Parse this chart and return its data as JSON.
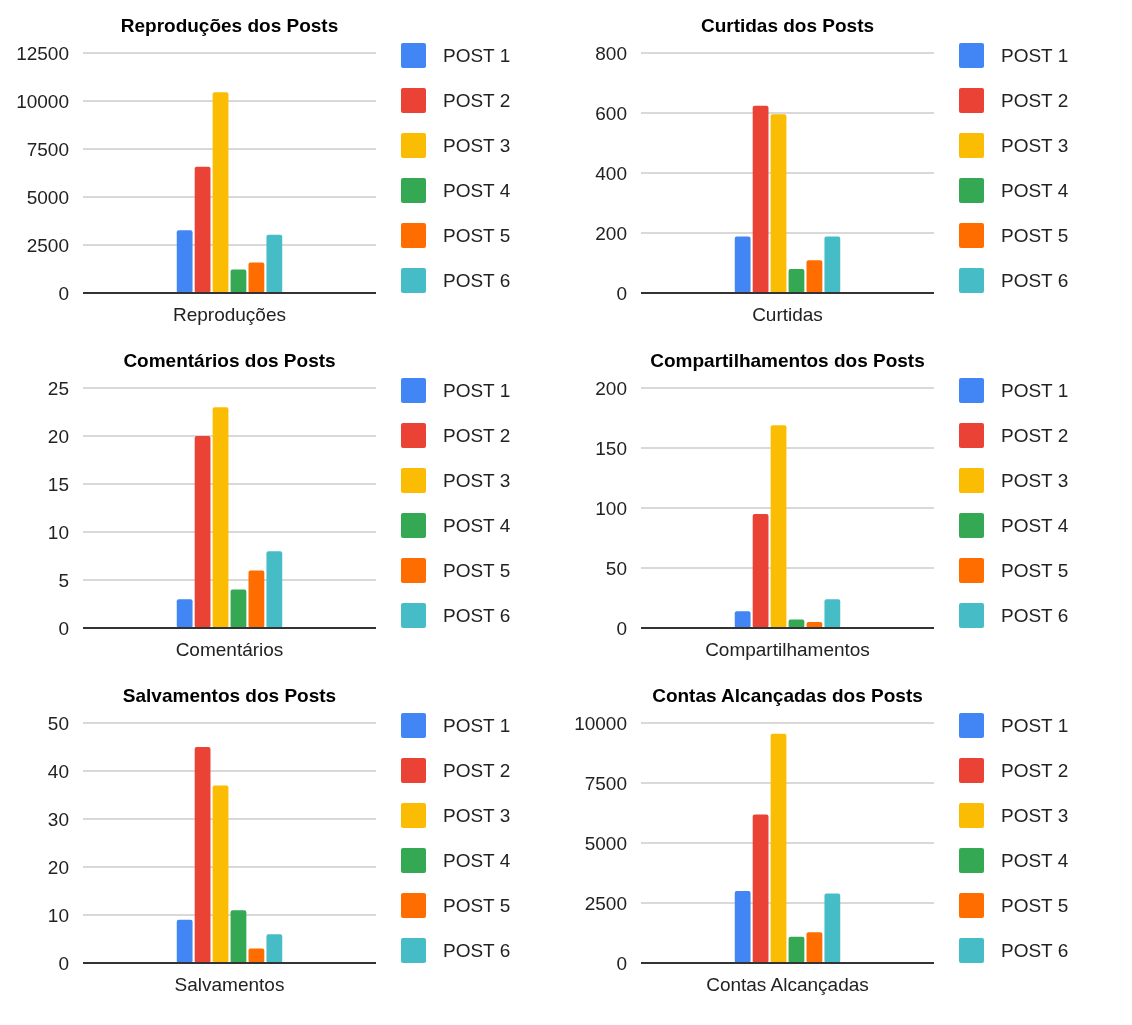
{
  "chart_data": [
    {
      "type": "bar",
      "title": "Reproduções dos Posts",
      "categories": [
        "Reproduções"
      ],
      "ylim": [
        0,
        12500
      ],
      "yticks": [
        0,
        2500,
        5000,
        7500,
        10000,
        12500
      ],
      "grid": "y",
      "legend": "right",
      "series": [
        {
          "name": "POST 1",
          "color": "#4285f4",
          "values": [
            3270
          ]
        },
        {
          "name": "POST 2",
          "color": "#ea4335",
          "values": [
            6570
          ]
        },
        {
          "name": "POST 3",
          "color": "#fbbc04",
          "values": [
            10450
          ]
        },
        {
          "name": "POST 4",
          "color": "#34a853",
          "values": [
            1230
          ]
        },
        {
          "name": "POST 5",
          "color": "#ff6d01",
          "values": [
            1590
          ]
        },
        {
          "name": "POST 6",
          "color": "#46bdc6",
          "values": [
            3040
          ]
        }
      ]
    },
    {
      "type": "bar",
      "title": "Curtidas dos Posts",
      "categories": [
        "Curtidas"
      ],
      "ylim": [
        0,
        800
      ],
      "yticks": [
        0,
        200,
        400,
        600,
        800
      ],
      "grid": "y",
      "legend": "right",
      "series": [
        {
          "name": "POST 1",
          "color": "#4285f4",
          "values": [
            188
          ]
        },
        {
          "name": "POST 2",
          "color": "#ea4335",
          "values": [
            624
          ]
        },
        {
          "name": "POST 3",
          "color": "#fbbc04",
          "values": [
            596
          ]
        },
        {
          "name": "POST 4",
          "color": "#34a853",
          "values": [
            80
          ]
        },
        {
          "name": "POST 5",
          "color": "#ff6d01",
          "values": [
            109
          ]
        },
        {
          "name": "POST 6",
          "color": "#46bdc6",
          "values": [
            188
          ]
        }
      ]
    },
    {
      "type": "bar",
      "title": "Comentários dos Posts",
      "categories": [
        "Comentários"
      ],
      "ylim": [
        0,
        25
      ],
      "yticks": [
        0,
        5,
        10,
        15,
        20,
        25
      ],
      "grid": "y",
      "legend": "right",
      "series": [
        {
          "name": "POST 1",
          "color": "#4285f4",
          "values": [
            3
          ]
        },
        {
          "name": "POST 2",
          "color": "#ea4335",
          "values": [
            20
          ]
        },
        {
          "name": "POST 3",
          "color": "#fbbc04",
          "values": [
            23
          ]
        },
        {
          "name": "POST 4",
          "color": "#34a853",
          "values": [
            4
          ]
        },
        {
          "name": "POST 5",
          "color": "#ff6d01",
          "values": [
            6
          ]
        },
        {
          "name": "POST 6",
          "color": "#46bdc6",
          "values": [
            8
          ]
        }
      ]
    },
    {
      "type": "bar",
      "title": "Compartilhamentos dos Posts",
      "categories": [
        "Compartilhamentos"
      ],
      "ylim": [
        0,
        200
      ],
      "yticks": [
        0,
        50,
        100,
        150,
        200
      ],
      "grid": "y",
      "legend": "right",
      "series": [
        {
          "name": "POST 1",
          "color": "#4285f4",
          "values": [
            14
          ]
        },
        {
          "name": "POST 2",
          "color": "#ea4335",
          "values": [
            95
          ]
        },
        {
          "name": "POST 3",
          "color": "#fbbc04",
          "values": [
            169
          ]
        },
        {
          "name": "POST 4",
          "color": "#34a853",
          "values": [
            7
          ]
        },
        {
          "name": "POST 5",
          "color": "#ff6d01",
          "values": [
            5
          ]
        },
        {
          "name": "POST 6",
          "color": "#46bdc6",
          "values": [
            24
          ]
        }
      ]
    },
    {
      "type": "bar",
      "title": "Salvamentos dos Posts",
      "categories": [
        "Salvamentos"
      ],
      "ylim": [
        0,
        50
      ],
      "yticks": [
        0,
        10,
        20,
        30,
        40,
        50
      ],
      "grid": "y",
      "legend": "right",
      "series": [
        {
          "name": "POST 1",
          "color": "#4285f4",
          "values": [
            9
          ]
        },
        {
          "name": "POST 2",
          "color": "#ea4335",
          "values": [
            45
          ]
        },
        {
          "name": "POST 3",
          "color": "#fbbc04",
          "values": [
            37
          ]
        },
        {
          "name": "POST 4",
          "color": "#34a853",
          "values": [
            11
          ]
        },
        {
          "name": "POST 5",
          "color": "#ff6d01",
          "values": [
            3
          ]
        },
        {
          "name": "POST 6",
          "color": "#46bdc6",
          "values": [
            6
          ]
        }
      ]
    },
    {
      "type": "bar",
      "title": "Contas Alcançadas dos Posts",
      "categories": [
        "Contas Alcançadas"
      ],
      "ylim": [
        0,
        10000
      ],
      "yticks": [
        0,
        2500,
        5000,
        7500,
        10000
      ],
      "grid": "y",
      "legend": "right",
      "series": [
        {
          "name": "POST 1",
          "color": "#4285f4",
          "values": [
            3000
          ]
        },
        {
          "name": "POST 2",
          "color": "#ea4335",
          "values": [
            6190
          ]
        },
        {
          "name": "POST 3",
          "color": "#fbbc04",
          "values": [
            9550
          ]
        },
        {
          "name": "POST 4",
          "color": "#34a853",
          "values": [
            1090
          ]
        },
        {
          "name": "POST 5",
          "color": "#ff6d01",
          "values": [
            1280
          ]
        },
        {
          "name": "POST 6",
          "color": "#46bdc6",
          "values": [
            2900
          ]
        }
      ]
    }
  ]
}
